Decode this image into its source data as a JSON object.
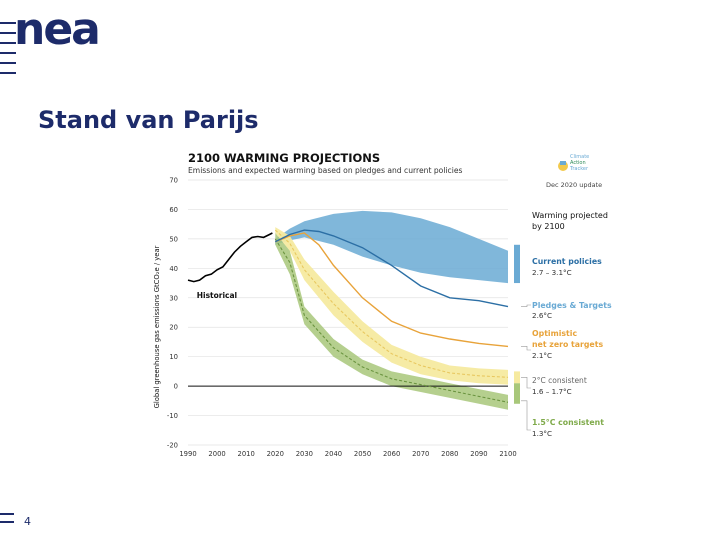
{
  "slide": {
    "logo": "nea",
    "title": "Stand van Parijs",
    "page_number": "4"
  },
  "colors": {
    "brand": "#1d2b6a",
    "current_policies": "#6aaad4",
    "current_policies_line": "#2c6fa5",
    "pledges": "#2c6fa5",
    "optimistic": "#e8a33a",
    "two_deg": "#f6eaa0",
    "one_five_deg": "#a8c77a",
    "historical": "#000000"
  },
  "chart_data": {
    "type": "line",
    "title": "2100 WARMING PROJECTIONS",
    "subtitle": "Emissions and expected warming based on pledges and current policies",
    "logo_text": [
      "Climate",
      "Action",
      "Tracker"
    ],
    "update_note": "Dec 2020 update",
    "ylabel": "Global greenhouse gas emissions GtCO₂e / year",
    "xlabel": "",
    "xlim": [
      1990,
      2100
    ],
    "ylim": [
      -20,
      70
    ],
    "x_ticks": [
      1990,
      2000,
      2010,
      2020,
      2030,
      2040,
      2050,
      2060,
      2070,
      2080,
      2090,
      2100
    ],
    "y_ticks": [
      -20,
      -10,
      0,
      10,
      20,
      30,
      40,
      50,
      60,
      70
    ],
    "grid": "horizontal",
    "right_header": [
      "Warming projected",
      "by 2100"
    ],
    "historical_label": "Historical",
    "series": [
      {
        "name": "Historical",
        "x": [
          1990,
          1992,
          1994,
          1996,
          1998,
          2000,
          2002,
          2004,
          2006,
          2008,
          2010,
          2012,
          2014,
          2016,
          2018,
          2019
        ],
        "y": [
          36,
          35.5,
          36,
          37.5,
          38,
          39.5,
          40.5,
          43,
          45.5,
          47.5,
          49,
          50.5,
          50.8,
          50.5,
          51.5,
          52
        ]
      },
      {
        "name": "Current policies",
        "label": "2.7 – 3.1°C",
        "band_x": [
          2020,
          2025,
          2030,
          2040,
          2050,
          2060,
          2070,
          2080,
          2090,
          2100
        ],
        "band_low": [
          48,
          49.5,
          50.5,
          48,
          44,
          41,
          38.5,
          37,
          36,
          35
        ],
        "band_high": [
          50,
          53.5,
          56,
          58.5,
          59.5,
          59,
          57,
          54,
          50,
          46
        ]
      },
      {
        "name": "Pledges & Targets",
        "label": "2.6°C",
        "x": [
          2020,
          2025,
          2030,
          2035,
          2040,
          2050,
          2060,
          2070,
          2080,
          2090,
          2100
        ],
        "y": [
          49,
          51.5,
          53,
          52.5,
          51,
          47,
          41,
          34,
          30,
          29,
          27
        ]
      },
      {
        "name": "Optimistic net zero targets",
        "label": "2.1°C",
        "x": [
          2020,
          2025,
          2030,
          2035,
          2040,
          2050,
          2060,
          2070,
          2080,
          2090,
          2100
        ],
        "y": [
          49,
          51,
          52,
          48,
          41,
          30,
          22,
          18,
          16,
          14.5,
          13.5
        ]
      },
      {
        "name": "2°C consistent",
        "label": "1.6 – 1.7°C",
        "band_x": [
          2020,
          2025,
          2030,
          2040,
          2050,
          2060,
          2070,
          2080,
          2090,
          2100
        ],
        "band_low": [
          52,
          46,
          36,
          24,
          15,
          8,
          4,
          2,
          1,
          0.5
        ],
        "band_high": [
          54,
          51,
          43,
          32,
          22,
          14,
          10,
          7,
          6,
          5.5
        ],
        "mid_y": [
          53,
          48.5,
          39.5,
          28,
          18.5,
          11,
          7,
          4.5,
          3.5,
          3
        ]
      },
      {
        "name": "1.5°C consistent",
        "label": "1.3°C",
        "band_x": [
          2020,
          2025,
          2030,
          2040,
          2050,
          2060,
          2070,
          2080,
          2090,
          2100
        ],
        "band_low": [
          48,
          38,
          21,
          10,
          4,
          0,
          -2,
          -4,
          -6,
          -8
        ],
        "band_high": [
          52,
          46,
          27,
          16,
          9,
          5,
          3,
          1,
          -1,
          -3
        ],
        "mid_y": [
          50,
          42,
          24,
          13,
          6.5,
          2.5,
          0.5,
          -1.5,
          -3.5,
          -5.5
        ]
      }
    ]
  }
}
